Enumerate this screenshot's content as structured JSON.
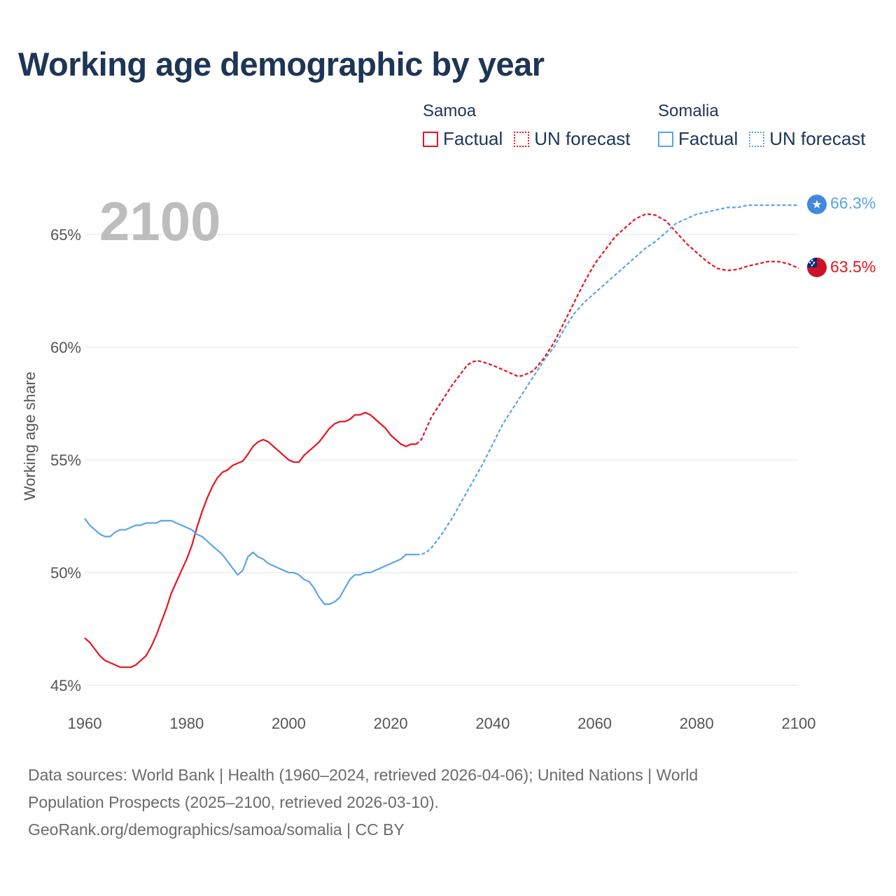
{
  "title": "Working age demographic by year",
  "legend": {
    "groups": [
      {
        "name": "Samoa",
        "color": "#e8141e",
        "factual_label": "Factual",
        "forecast_label": "UN forecast"
      },
      {
        "name": "Somalia",
        "color": "#5aa5e8",
        "factual_label": "Factual",
        "forecast_label": "UN forecast"
      }
    ]
  },
  "footer": {
    "line1": "Data sources: World Bank | Health (1960–2024, retrieved 2026-04-06); United Nations | World",
    "line2": "Population Prospects (2025–2100, retrieved 2026-03-10).",
    "line3": "GeoRank.org/demographics/samoa/somalia | CC BY"
  },
  "chart_data": {
    "type": "line",
    "title": "Working age demographic by year",
    "current_year_label": "2100",
    "xlabel": "",
    "ylabel": "Working age share",
    "xlim": [
      1960,
      2100
    ],
    "ylim": [
      45,
      67.5
    ],
    "x_ticks": [
      1960,
      1980,
      2000,
      2020,
      2040,
      2060,
      2080,
      2100
    ],
    "y_ticks": [
      45,
      50,
      55,
      60,
      65
    ],
    "y_tick_labels": [
      "45%",
      "50%",
      "55%",
      "60%",
      "65%"
    ],
    "grid": true,
    "series": [
      {
        "name": "Samoa",
        "color": "#e8141e",
        "end_label": "63.5%",
        "end_icon": "samoa-flag-icon",
        "factual": {
          "x": [
            1960,
            1961,
            1962,
            1963,
            1964,
            1965,
            1966,
            1967,
            1968,
            1969,
            1970,
            1971,
            1972,
            1973,
            1974,
            1975,
            1976,
            1977,
            1978,
            1979,
            1980,
            1981,
            1982,
            1983,
            1984,
            1985,
            1986,
            1987,
            1988,
            1989,
            1990,
            1991,
            1992,
            1993,
            1994,
            1995,
            1996,
            1997,
            1998,
            1999,
            2000,
            2001,
            2002,
            2003,
            2004,
            2005,
            2006,
            2007,
            2008,
            2009,
            2010,
            2011,
            2012,
            2013,
            2014,
            2015,
            2016,
            2017,
            2018,
            2019,
            2020,
            2021,
            2022,
            2023,
            2024,
            2025
          ],
          "y": [
            47.1,
            46.9,
            46.6,
            46.3,
            46.1,
            46.0,
            45.9,
            45.8,
            45.8,
            45.8,
            45.9,
            46.1,
            46.3,
            46.7,
            47.2,
            47.8,
            48.4,
            49.1,
            49.6,
            50.1,
            50.6,
            51.2,
            52.0,
            52.7,
            53.3,
            53.8,
            54.2,
            54.45,
            54.55,
            54.75,
            54.85,
            54.95,
            55.25,
            55.6,
            55.8,
            55.9,
            55.8,
            55.6,
            55.4,
            55.2,
            55.0,
            54.9,
            54.9,
            55.2,
            55.4,
            55.6,
            55.8,
            56.1,
            56.4,
            56.6,
            56.7,
            56.7,
            56.8,
            57.0,
            57.0,
            57.1,
            57.0,
            56.8,
            56.6,
            56.4,
            56.1,
            55.9,
            55.7,
            55.6,
            55.7,
            55.7
          ]
        },
        "forecast": {
          "x": [
            2025,
            2026,
            2027,
            2028,
            2030,
            2032,
            2034,
            2035,
            2036,
            2037,
            2038,
            2040,
            2042,
            2044,
            2045,
            2046,
            2048,
            2050,
            2052,
            2054,
            2056,
            2058,
            2060,
            2062,
            2064,
            2066,
            2068,
            2070,
            2071,
            2072,
            2074,
            2076,
            2078,
            2080,
            2082,
            2084,
            2086,
            2088,
            2090,
            2092,
            2094,
            2096,
            2098,
            2100
          ],
          "y": [
            55.7,
            55.9,
            56.4,
            56.9,
            57.6,
            58.3,
            58.9,
            59.2,
            59.35,
            59.4,
            59.35,
            59.2,
            59.0,
            58.8,
            58.7,
            58.75,
            58.95,
            59.5,
            60.2,
            61.1,
            62.0,
            62.9,
            63.7,
            64.3,
            64.9,
            65.3,
            65.7,
            65.9,
            65.9,
            65.85,
            65.6,
            65.1,
            64.6,
            64.2,
            63.8,
            63.5,
            63.4,
            63.45,
            63.6,
            63.7,
            63.8,
            63.8,
            63.7,
            63.5
          ]
        }
      },
      {
        "name": "Somalia",
        "color": "#5aa5e8",
        "end_label": "66.3%",
        "end_icon": "somalia-flag-icon",
        "factual": {
          "x": [
            1960,
            1961,
            1962,
            1963,
            1964,
            1965,
            1966,
            1967,
            1968,
            1969,
            1970,
            1971,
            1972,
            1973,
            1974,
            1975,
            1976,
            1977,
            1978,
            1979,
            1980,
            1981,
            1982,
            1983,
            1984,
            1985,
            1986,
            1987,
            1988,
            1989,
            1990,
            1991,
            1992,
            1993,
            1994,
            1995,
            1996,
            1997,
            1998,
            1999,
            2000,
            2001,
            2002,
            2003,
            2004,
            2005,
            2006,
            2007,
            2008,
            2009,
            2010,
            2011,
            2012,
            2013,
            2014,
            2015,
            2016,
            2017,
            2018,
            2019,
            2020,
            2021,
            2022,
            2023,
            2024,
            2025
          ],
          "y": [
            52.4,
            52.1,
            51.9,
            51.7,
            51.6,
            51.6,
            51.8,
            51.9,
            51.9,
            52.0,
            52.1,
            52.1,
            52.2,
            52.2,
            52.2,
            52.3,
            52.3,
            52.3,
            52.2,
            52.1,
            52.0,
            51.9,
            51.7,
            51.6,
            51.4,
            51.2,
            51.0,
            50.8,
            50.5,
            50.2,
            49.9,
            50.1,
            50.7,
            50.9,
            50.7,
            50.6,
            50.4,
            50.3,
            50.2,
            50.1,
            50.0,
            50.0,
            49.9,
            49.7,
            49.6,
            49.3,
            48.9,
            48.6,
            48.6,
            48.7,
            48.9,
            49.3,
            49.7,
            49.9,
            49.9,
            50.0,
            50.0,
            50.1,
            50.2,
            50.3,
            50.4,
            50.5,
            50.6,
            50.8,
            50.8,
            50.8
          ]
        },
        "forecast": {
          "x": [
            2025,
            2026,
            2027,
            2028,
            2030,
            2032,
            2034,
            2036,
            2038,
            2040,
            2042,
            2044,
            2046,
            2048,
            2050,
            2052,
            2054,
            2056,
            2058,
            2060,
            2062,
            2064,
            2066,
            2068,
            2070,
            2072,
            2074,
            2076,
            2078,
            2080,
            2082,
            2084,
            2086,
            2088,
            2090,
            2092,
            2094,
            2096,
            2098,
            2100
          ],
          "y": [
            50.8,
            50.8,
            50.9,
            51.1,
            51.7,
            52.4,
            53.2,
            54.0,
            54.8,
            55.7,
            56.6,
            57.3,
            58.0,
            58.7,
            59.4,
            60.0,
            60.8,
            61.5,
            62.0,
            62.4,
            62.8,
            63.2,
            63.6,
            64.0,
            64.4,
            64.7,
            65.1,
            65.5,
            65.7,
            65.9,
            66.0,
            66.1,
            66.2,
            66.2,
            66.3,
            66.3,
            66.3,
            66.3,
            66.3,
            66.3
          ]
        }
      }
    ]
  }
}
